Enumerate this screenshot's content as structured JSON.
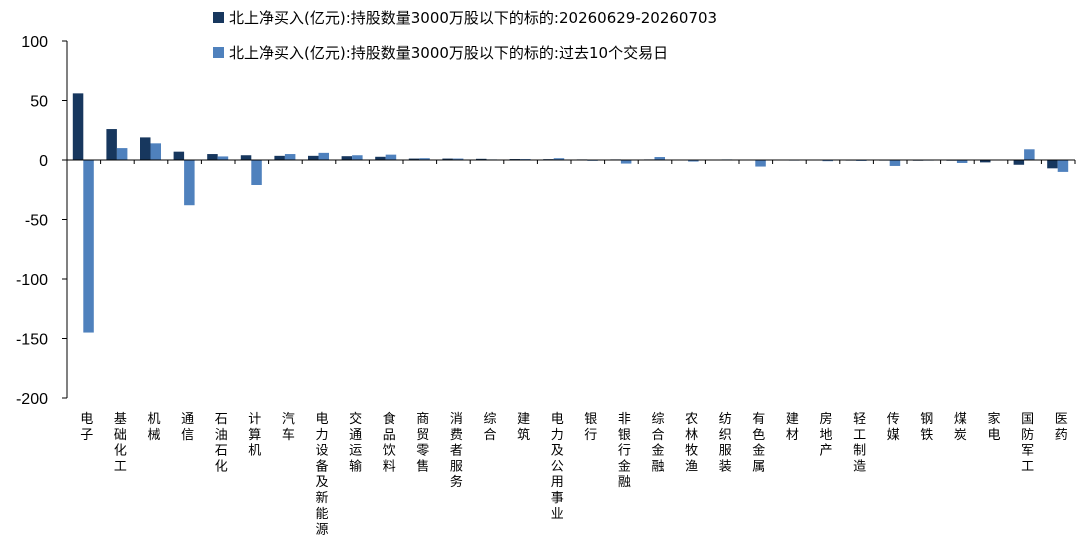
{
  "chart_data": {
    "type": "bar",
    "title": "",
    "xlabel": "",
    "ylabel": "",
    "ylim": [
      -200,
      100
    ],
    "yticks": [
      100,
      50,
      0,
      -50,
      -100,
      -150,
      -200
    ],
    "grid": false,
    "legend_position": "top",
    "categories": [
      "电子",
      "基础化工",
      "机械",
      "通信",
      "石油石化",
      "计算机",
      "汽车",
      "电力设备及新能源",
      "交通运输",
      "食品饮料",
      "商贸零售",
      "消费者服务",
      "综合",
      "建筑",
      "电力及公用事业",
      "银行",
      "非银行金融",
      "综合金融",
      "农林牧渔",
      "纺织服装",
      "有色金属",
      "建材",
      "房地产",
      "轻工制造",
      "传媒",
      "钢铁",
      "煤炭",
      "家电",
      "国防军工",
      "医药"
    ],
    "series": [
      {
        "name": "北上净买入(亿元):持股数量3000万股以下的标的:20260629-20260703",
        "color": "#17375E",
        "values": [
          56,
          26,
          19,
          7,
          5,
          4,
          3.5,
          3.5,
          3.2,
          2.7,
          1.2,
          1.2,
          1.0,
          0.8,
          0.7,
          0.5,
          0.5,
          0.5,
          0.4,
          0.3,
          0.3,
          0.3,
          0.2,
          -0.5,
          -0.5,
          -0.6,
          -0.6,
          -2.0,
          -4.0,
          -7.0
        ]
      },
      {
        "name": "北上净买入(亿元):持股数量3000万股以下的标的:过去10个交易日",
        "color": "#4F81BD",
        "values": [
          -145,
          10,
          14,
          -38,
          3,
          -21,
          5,
          6,
          4,
          4.5,
          1.5,
          1.2,
          0.5,
          0.8,
          1.5,
          -0.7,
          -3.0,
          2.5,
          -1.3,
          0.5,
          -5.5,
          -0.5,
          -1.0,
          -0.8,
          -5.0,
          -0.5,
          -2.5,
          0.3,
          9.0,
          -10.0
        ]
      }
    ]
  }
}
